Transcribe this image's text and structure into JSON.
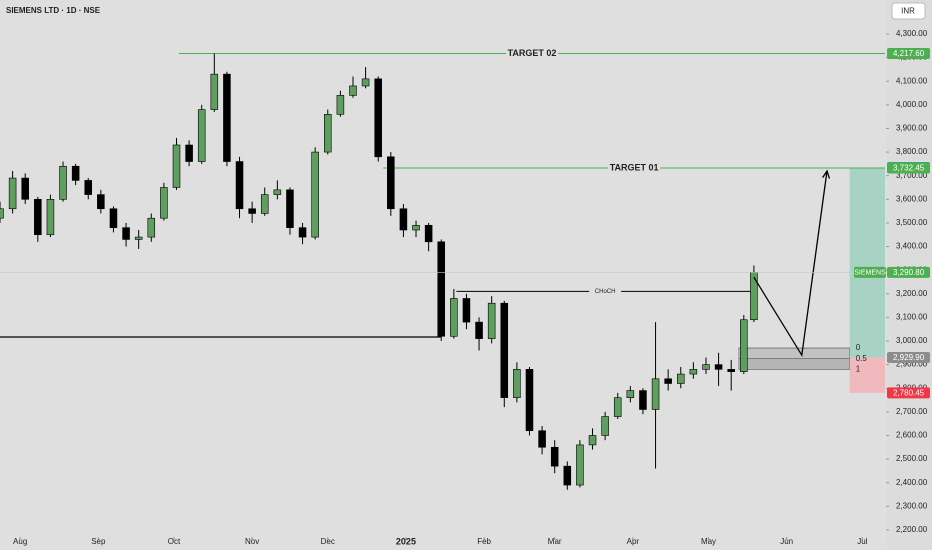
{
  "chart_data": {
    "type": "candlestick",
    "title": "SIEMENS LTD · 1D · NSE",
    "currency": "INR",
    "up_color": "#5e9e5e",
    "down_color": "#000000",
    "xlim": [
      -8,
      343
    ],
    "ylim": [
      2170,
      4444
    ],
    "xticks": [
      {
        "value": 0,
        "label": "Aug"
      },
      {
        "value": 31,
        "label": "Sep"
      },
      {
        "value": 61,
        "label": "Oct"
      },
      {
        "value": 92,
        "label": "Nov"
      },
      {
        "value": 122,
        "label": "Dec"
      },
      {
        "value": 153,
        "label": "2025"
      },
      {
        "value": 184,
        "label": "Feb"
      },
      {
        "value": 212,
        "label": "Mar"
      },
      {
        "value": 243,
        "label": "Apr"
      },
      {
        "value": 273,
        "label": "May"
      },
      {
        "value": 304,
        "label": "Jun"
      },
      {
        "value": 334,
        "label": "Jul"
      }
    ],
    "yticks": [
      {
        "value": 2200,
        "label": "2,200.00"
      },
      {
        "value": 2300,
        "label": "2,300.00"
      },
      {
        "value": 2400,
        "label": "2,400.00"
      },
      {
        "value": 2500,
        "label": "2,500.00"
      },
      {
        "value": 2600,
        "label": "2,600.00"
      },
      {
        "value": 2700,
        "label": "2,700.00"
      },
      {
        "value": 2800,
        "label": "2,800.00"
      },
      {
        "value": 2900,
        "label": "2,900.00"
      },
      {
        "value": 3000,
        "label": "3,000.00"
      },
      {
        "value": 3100,
        "label": "3,100.00"
      },
      {
        "value": 3200,
        "label": "3,200.00"
      },
      {
        "value": 3300,
        "label": "3,300.00"
      },
      {
        "value": 3400,
        "label": "3,400.00"
      },
      {
        "value": 3500,
        "label": "3,500.00"
      },
      {
        "value": 3600,
        "label": "3,600.00"
      },
      {
        "value": 3700,
        "label": "3,700.00"
      },
      {
        "value": 3800,
        "label": "3,800.00"
      },
      {
        "value": 3900,
        "label": "3,900.00"
      },
      {
        "value": 4000,
        "label": "4,000.00"
      },
      {
        "value": 4100,
        "label": "4,100.00"
      },
      {
        "value": 4200,
        "label": "4,200.00"
      },
      {
        "value": 4300,
        "label": "4,300.00"
      }
    ],
    "x": [
      -8,
      -3,
      2,
      7,
      12,
      17,
      22,
      27,
      32,
      37,
      42,
      47,
      52,
      57,
      62,
      67,
      72,
      77,
      82,
      87,
      92,
      97,
      102,
      107,
      112,
      117,
      122,
      127,
      132,
      137,
      142,
      147,
      152,
      157,
      162,
      167,
      172,
      177,
      182,
      187,
      192,
      197,
      202,
      207,
      212,
      217,
      222,
      227,
      232,
      237,
      242,
      247,
      252,
      257,
      262,
      267,
      272,
      277,
      282,
      287,
      291
    ],
    "candles": [
      [
        3520,
        3590,
        3500,
        3560
      ],
      [
        3560,
        3720,
        3540,
        3690
      ],
      [
        3690,
        3710,
        3580,
        3600
      ],
      [
        3600,
        3610,
        3420,
        3450
      ],
      [
        3450,
        3620,
        3440,
        3600
      ],
      [
        3600,
        3760,
        3590,
        3740
      ],
      [
        3740,
        3750,
        3660,
        3680
      ],
      [
        3680,
        3690,
        3600,
        3620
      ],
      [
        3620,
        3640,
        3540,
        3560
      ],
      [
        3560,
        3570,
        3460,
        3480
      ],
      [
        3480,
        3500,
        3400,
        3430
      ],
      [
        3430,
        3470,
        3390,
        3440
      ],
      [
        3440,
        3540,
        3420,
        3520
      ],
      [
        3520,
        3670,
        3510,
        3650
      ],
      [
        3650,
        3860,
        3640,
        3830
      ],
      [
        3830,
        3850,
        3740,
        3760
      ],
      [
        3760,
        4000,
        3750,
        3980
      ],
      [
        3980,
        4217,
        3970,
        4130
      ],
      [
        4130,
        4140,
        3740,
        3760
      ],
      [
        3760,
        3780,
        3520,
        3560
      ],
      [
        3560,
        3590,
        3500,
        3540
      ],
      [
        3540,
        3650,
        3530,
        3620
      ],
      [
        3620,
        3680,
        3600,
        3640
      ],
      [
        3640,
        3650,
        3450,
        3480
      ],
      [
        3480,
        3500,
        3410,
        3440
      ],
      [
        3440,
        3820,
        3430,
        3800
      ],
      [
        3800,
        3980,
        3790,
        3960
      ],
      [
        3960,
        4060,
        3950,
        4040
      ],
      [
        4040,
        4120,
        4030,
        4080
      ],
      [
        4080,
        4160,
        4070,
        4110
      ],
      [
        4110,
        4120,
        3760,
        3780
      ],
      [
        3780,
        3800,
        3530,
        3560
      ],
      [
        3560,
        3580,
        3440,
        3470
      ],
      [
        3470,
        3510,
        3440,
        3490
      ],
      [
        3490,
        3500,
        3380,
        3420
      ],
      [
        3420,
        3430,
        3000,
        3020
      ],
      [
        3020,
        3220,
        3010,
        3180
      ],
      [
        3180,
        3200,
        3050,
        3080
      ],
      [
        3080,
        3100,
        2960,
        3010
      ],
      [
        3010,
        3190,
        2990,
        3160
      ],
      [
        3160,
        3170,
        2720,
        2760
      ],
      [
        2760,
        2910,
        2740,
        2880
      ],
      [
        2880,
        2890,
        2600,
        2620
      ],
      [
        2620,
        2640,
        2520,
        2550
      ],
      [
        2550,
        2580,
        2440,
        2470
      ],
      [
        2470,
        2490,
        2370,
        2390
      ],
      [
        2390,
        2580,
        2380,
        2560
      ],
      [
        2560,
        2630,
        2540,
        2600
      ],
      [
        2600,
        2700,
        2580,
        2680
      ],
      [
        2680,
        2780,
        2670,
        2760
      ],
      [
        2760,
        2810,
        2740,
        2790
      ],
      [
        2790,
        2800,
        2690,
        2710
      ],
      [
        2710,
        3080,
        2460,
        2840
      ],
      [
        2840,
        2880,
        2790,
        2820
      ],
      [
        2820,
        2890,
        2800,
        2860
      ],
      [
        2860,
        2910,
        2840,
        2880
      ],
      [
        2880,
        2930,
        2860,
        2900
      ],
      [
        2900,
        2950,
        2810,
        2880
      ],
      [
        2880,
        2920,
        2790,
        2870
      ],
      [
        2870,
        3110,
        2860,
        3090
      ],
      [
        3090,
        3320,
        3080,
        3290.8
      ]
    ],
    "levels": [
      {
        "label": "TARGET 02",
        "value": 4217.6,
        "from": 63,
        "to": 343,
        "color": "#4caf50"
      },
      {
        "label": "TARGET 01",
        "value": 3732.45,
        "from": 144,
        "to": 343,
        "color": "#4caf50"
      },
      {
        "label": "CHoCH",
        "value": 3210,
        "from": 173,
        "to": 291,
        "color": "#000000"
      },
      {
        "value": 3017,
        "from": -8,
        "to": 167,
        "color": "#000000"
      }
    ],
    "fib": {
      "levels": [
        0,
        0.5,
        1
      ],
      "prices": [
        2970,
        2925,
        2880
      ],
      "from": 285,
      "to": 329
    },
    "position": {
      "from": 329,
      "to": 343,
      "target": 3734.45,
      "entry": 2929.9,
      "stop": 2780.45
    },
    "arrow": {
      "x": [
        291,
        310,
        320
      ],
      "y": [
        3270,
        2940,
        3720
      ]
    },
    "last_price_name": "SIEMENS",
    "price_tags": [
      {
        "value": 4217.6,
        "label": "4,217.60",
        "color": "#4caf50"
      },
      {
        "value": 3734.45,
        "label": "3,734.45",
        "color": "#26a69a"
      },
      {
        "value": 3732.45,
        "label": "3,732.45",
        "color": "#4caf50"
      },
      {
        "value": 3290.8,
        "label": "3,290.80",
        "color": "#4caf50"
      },
      {
        "value": 2929.9,
        "label": "2,929.90",
        "color": "#8c8c8c"
      },
      {
        "value": 2780.45,
        "label": "2,780.45",
        "color": "#f23645"
      }
    ]
  }
}
